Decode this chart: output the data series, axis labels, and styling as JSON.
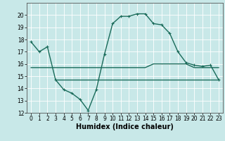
{
  "xlabel": "Humidex (Indice chaleur)",
  "background_color": "#c8e8e8",
  "grid_color": "#ffffff",
  "line_color": "#1a6b5a",
  "x_values": [
    0,
    1,
    2,
    3,
    4,
    5,
    6,
    7,
    8,
    9,
    10,
    11,
    12,
    13,
    14,
    15,
    16,
    17,
    18,
    19,
    20,
    21,
    22,
    23
  ],
  "line1_y": [
    17.8,
    17.0,
    17.4,
    14.7,
    13.9,
    13.6,
    13.1,
    12.2,
    13.9,
    16.8,
    19.3,
    19.9,
    19.9,
    20.1,
    20.1,
    19.3,
    19.2,
    18.5,
    17.0,
    16.1,
    15.9,
    15.8,
    15.9,
    14.7
  ],
  "line2_y": [
    15.7,
    15.7,
    15.7,
    15.7,
    15.7,
    15.7,
    15.7,
    15.7,
    15.7,
    15.7,
    15.7,
    15.7,
    15.7,
    15.7,
    15.7,
    16.0,
    16.0,
    16.0,
    16.0,
    16.0,
    15.7,
    15.7,
    15.7,
    15.7
  ],
  "line3_y": [
    null,
    null,
    null,
    14.7,
    14.7,
    14.7,
    14.7,
    14.7,
    14.7,
    14.7,
    14.7,
    14.7,
    14.7,
    14.7,
    14.7,
    14.7,
    14.7,
    14.7,
    14.7,
    14.7,
    14.7,
    14.7,
    14.7,
    14.7
  ],
  "ylim": [
    12,
    21
  ],
  "xlim": [
    -0.5,
    23.5
  ],
  "yticks": [
    12,
    13,
    14,
    15,
    16,
    17,
    18,
    19,
    20
  ],
  "xticks": [
    0,
    1,
    2,
    3,
    4,
    5,
    6,
    7,
    8,
    9,
    10,
    11,
    12,
    13,
    14,
    15,
    16,
    17,
    18,
    19,
    20,
    21,
    22,
    23
  ],
  "tick_fontsize": 5.5,
  "xlabel_fontsize": 7,
  "linewidth": 1.0,
  "marker": "+",
  "markersize": 3.5
}
